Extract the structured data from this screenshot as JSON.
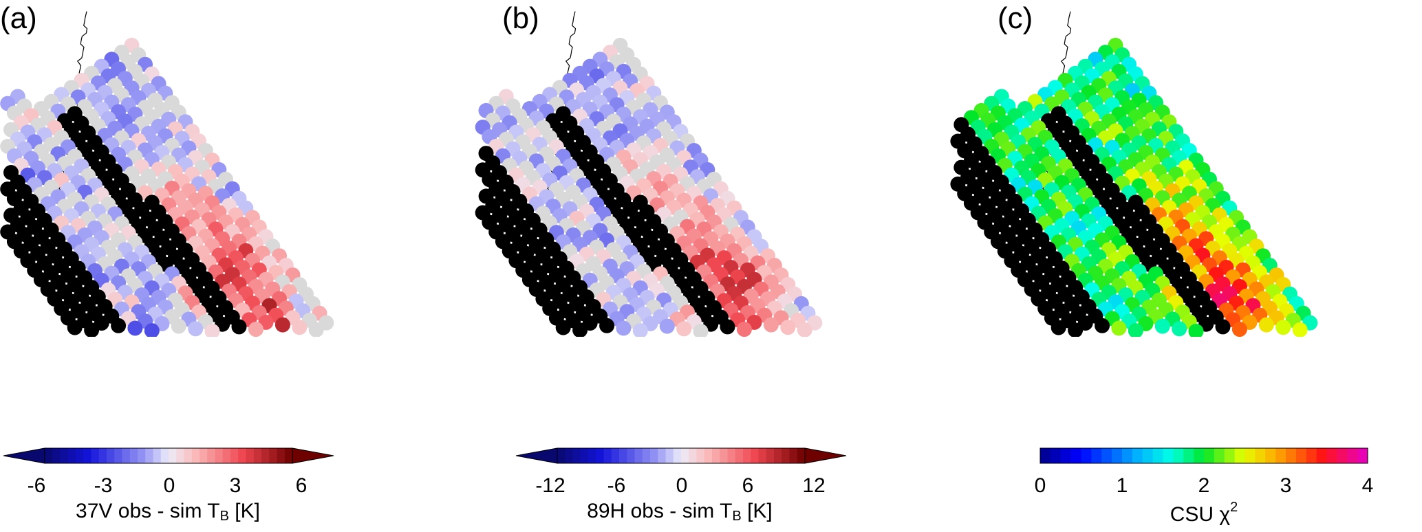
{
  "panels": [
    {
      "label": "(a)",
      "colorbar": {
        "colormap": "diverging-blue-white-red",
        "ticks": [
          "-6",
          "-3",
          "0",
          "3",
          "6"
        ],
        "range": [
          -7.5,
          7.5
        ],
        "extend": "both",
        "title_pre": "37V  obs - sim  T",
        "title_sub": "B",
        "title_post": " [K]"
      }
    },
    {
      "label": "(b)",
      "colorbar": {
        "colormap": "diverging-blue-white-red",
        "ticks": [
          "-12",
          "-6",
          "0",
          "6",
          "12"
        ],
        "range": [
          -15,
          15
        ],
        "extend": "both",
        "title_pre": "89H  obs - sim  T",
        "title_sub": "B",
        "title_post": " [K]"
      }
    },
    {
      "label": "(c)",
      "colorbar": {
        "colormap": "rainbow",
        "ticks": [
          "0",
          "1",
          "2",
          "3",
          "4"
        ],
        "range": [
          0,
          4
        ],
        "extend": "neither",
        "title_pre": "CSU χ",
        "title_sup": "2"
      }
    }
  ],
  "colors": {
    "no_data": "#000000",
    "near_zero": "#d9d9d9",
    "coastline": "#000000"
  }
}
